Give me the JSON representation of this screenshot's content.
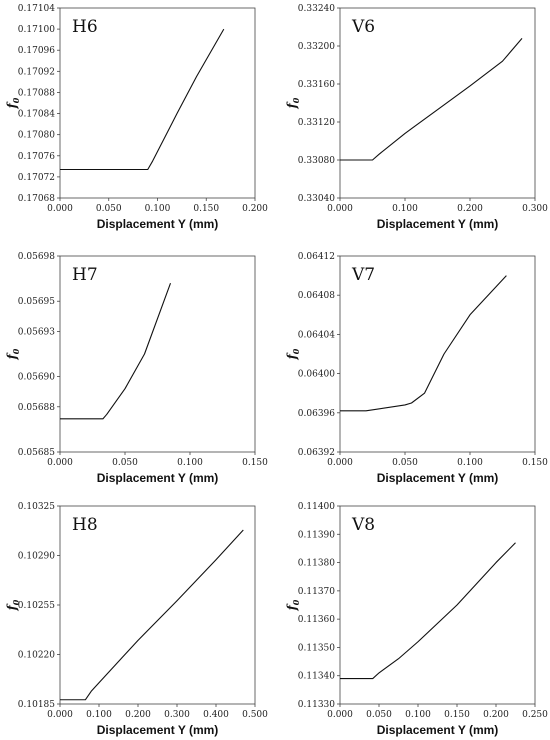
{
  "chart_data": [
    {
      "type": "line",
      "title": "H6",
      "ylabel_main": "f",
      "ylabel_sub": "0",
      "xlabel": "Displacement Y (mm)",
      "xlim": [
        0,
        0.2
      ],
      "ylim": [
        0.17068,
        0.17104
      ],
      "xticks": [
        "0.000",
        "0.050",
        "0.100",
        "0.150",
        "0.200"
      ],
      "yticks": [
        "0.17068",
        "0.17072",
        "0.17076",
        "0.17080",
        "0.17084",
        "0.17088",
        "0.17092",
        "0.17096",
        "0.17100",
        "0.17104"
      ],
      "series": [
        {
          "x": [
            0,
            0.09,
            0.095,
            0.12,
            0.14,
            0.168
          ],
          "y": [
            0.170734,
            0.170734,
            0.17075,
            0.17084,
            0.17091,
            0.171
          ]
        }
      ]
    },
    {
      "type": "line",
      "title": "V6",
      "ylabel_main": "f",
      "ylabel_sub": "0",
      "xlabel": "Displacement Y (mm)",
      "xlim": [
        0,
        0.3
      ],
      "ylim": [
        0.3304,
        0.3324
      ],
      "xticks": [
        "0.000",
        "0.100",
        "0.200",
        "0.300"
      ],
      "yticks": [
        "0.33040",
        "0.33080",
        "0.33120",
        "0.33160",
        "0.33200",
        "0.33240"
      ],
      "series": [
        {
          "x": [
            0,
            0.05,
            0.06,
            0.1,
            0.15,
            0.2,
            0.25,
            0.28
          ],
          "y": [
            0.3308,
            0.3308,
            0.33086,
            0.33108,
            0.33133,
            0.33158,
            0.33184,
            0.33208
          ]
        }
      ]
    },
    {
      "type": "line",
      "title": "H7",
      "ylabel_main": "f",
      "ylabel_sub": "0",
      "xlabel": "Displacement Y (mm)",
      "xlim": [
        0,
        0.15
      ],
      "ylim": [
        0.05685,
        0.05698
      ],
      "xticks": [
        "0.000",
        "0.050",
        "0.100",
        "0.150"
      ],
      "yticks": [
        "0.05685",
        "0.05688",
        "0.05690",
        "0.05693",
        "0.05695",
        "0.05698"
      ],
      "series": [
        {
          "x": [
            0,
            0.033,
            0.036,
            0.05,
            0.065,
            0.085
          ],
          "y": [
            0.056872,
            0.056872,
            0.056875,
            0.056892,
            0.056915,
            0.056962
          ]
        }
      ]
    },
    {
      "type": "line",
      "title": "V7",
      "ylabel_main": "f",
      "ylabel_sub": "0",
      "xlabel": "Displacement Y (mm)",
      "xlim": [
        0,
        0.15
      ],
      "ylim": [
        0.06392,
        0.06412
      ],
      "xticks": [
        "0.000",
        "0.050",
        "0.100",
        "0.150"
      ],
      "yticks": [
        "0.06392",
        "0.06396",
        "0.06400",
        "0.06404",
        "0.06408",
        "0.06412"
      ],
      "series": [
        {
          "x": [
            0,
            0.02,
            0.05,
            0.055,
            0.065,
            0.08,
            0.1,
            0.128
          ],
          "y": [
            0.063962,
            0.063962,
            0.063968,
            0.06397,
            0.06398,
            0.06402,
            0.06406,
            0.0641
          ]
        }
      ]
    },
    {
      "type": "line",
      "title": "H8",
      "ylabel_main": "f",
      "ylabel_sub": "0",
      "xlabel": "Displacement Y (mm)",
      "xlim": [
        0,
        0.5
      ],
      "ylim": [
        0.10185,
        0.10325
      ],
      "xticks": [
        "0.000",
        "0.100",
        "0.200",
        "0.300",
        "0.400",
        "0.500"
      ],
      "yticks": [
        "0.10185",
        "0.10220",
        "0.10255",
        "0.10290",
        "0.10325"
      ],
      "series": [
        {
          "x": [
            0,
            0.065,
            0.08,
            0.1,
            0.2,
            0.3,
            0.4,
            0.47
          ],
          "y": [
            0.10188,
            0.10188,
            0.10194,
            0.102,
            0.1023,
            0.10258,
            0.10287,
            0.10308
          ]
        }
      ]
    },
    {
      "type": "line",
      "title": "V8",
      "ylabel_main": "f",
      "ylabel_sub": "0",
      "xlabel": "Displacement Y (mm)",
      "xlim": [
        0,
        0.25
      ],
      "ylim": [
        0.1133,
        0.114
      ],
      "xticks": [
        "0.000",
        "0.050",
        "0.100",
        "0.150",
        "0.200",
        "0.250"
      ],
      "yticks": [
        "0.11330",
        "0.11340",
        "0.11350",
        "0.11360",
        "0.11370",
        "0.11380",
        "0.11390",
        "0.11400"
      ],
      "series": [
        {
          "x": [
            0,
            0.042,
            0.05,
            0.075,
            0.1,
            0.15,
            0.2,
            0.225
          ],
          "y": [
            0.11339,
            0.11339,
            0.11341,
            0.11346,
            0.11352,
            0.11365,
            0.1138,
            0.11387
          ]
        }
      ]
    }
  ]
}
